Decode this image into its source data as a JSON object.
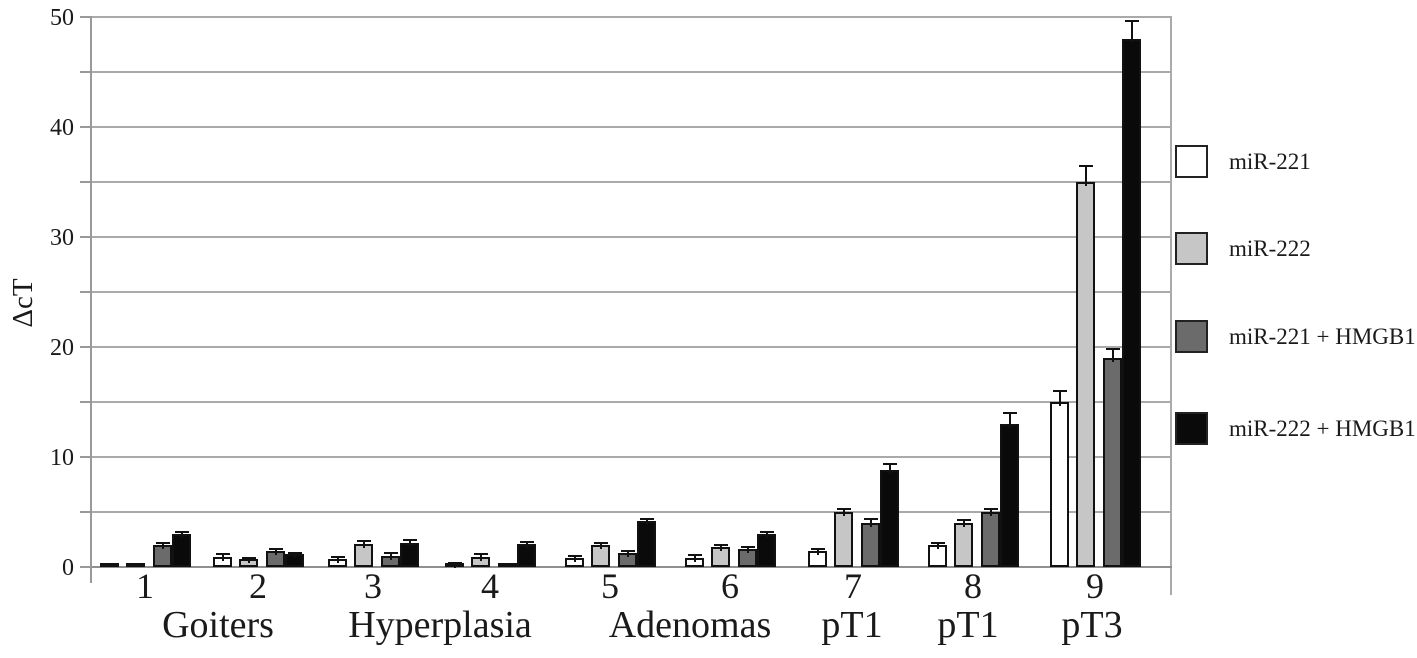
{
  "chart_data": {
    "type": "bar",
    "title": "",
    "xlabel": "",
    "ylabel": "ΔcT",
    "ylim": [
      0,
      50
    ],
    "ytick_labels": [
      "0",
      "10",
      "20",
      "30",
      "40",
      "50"
    ],
    "ytick_values": [
      0,
      10,
      20,
      30,
      40,
      50
    ],
    "gridline_step": 5,
    "grid": true,
    "legend_position": "right",
    "categories": [
      "1",
      "2",
      "3",
      "4",
      "5",
      "6",
      "7",
      "8",
      "9"
    ],
    "category_groups": [
      {
        "label": "Goiters",
        "spans": [
          "1",
          "2"
        ]
      },
      {
        "label": "Hyperplasia",
        "spans": [
          "3",
          "4"
        ]
      },
      {
        "label": "Adenomas",
        "spans": [
          "5",
          "6"
        ]
      },
      {
        "label": "pT1",
        "spans": [
          "7"
        ]
      },
      {
        "label": "pT1",
        "spans": [
          "8"
        ]
      },
      {
        "label": "pT3",
        "spans": [
          "9"
        ]
      }
    ],
    "series": [
      {
        "name": "miR-221",
        "color": "#ffffff",
        "values": [
          0.15,
          0.9,
          0.7,
          0.3,
          0.8,
          0.8,
          1.5,
          2.0,
          15.0
        ],
        "errors": [
          0,
          0.25,
          0.2,
          0.1,
          0.2,
          0.25,
          0.15,
          0.2,
          1.0
        ]
      },
      {
        "name": "miR-222",
        "color": "#c6c6c6",
        "values": [
          0.15,
          0.7,
          2.1,
          0.9,
          2.0,
          1.8,
          5.0,
          4.0,
          35.0
        ],
        "errors": [
          0,
          0.15,
          0.25,
          0.25,
          0.2,
          0.2,
          0.3,
          0.3,
          1.5
        ]
      },
      {
        "name": "miR-221 + HMGB1",
        "color": "#6b6b6b",
        "values": [
          2.0,
          1.5,
          1.0,
          0.15,
          1.3,
          1.6,
          4.0,
          5.0,
          19.0
        ],
        "errors": [
          0.15,
          0.1,
          0.3,
          0,
          0.15,
          0.2,
          0.35,
          0.3,
          0.8
        ]
      },
      {
        "name": "miR-222 + HMGB1",
        "color": "#0a0a0a",
        "values": [
          3.0,
          1.2,
          2.2,
          2.1,
          4.2,
          3.0,
          8.8,
          13.0,
          48.0
        ],
        "errors": [
          0.2,
          0.1,
          0.25,
          0.2,
          0.2,
          0.2,
          0.6,
          1.0,
          1.6
        ]
      }
    ]
  },
  "colors": {
    "gridline": "#aaaaaa",
    "axis": "#999999",
    "bar_outline": "#111111",
    "text": "#1a1a1a"
  }
}
